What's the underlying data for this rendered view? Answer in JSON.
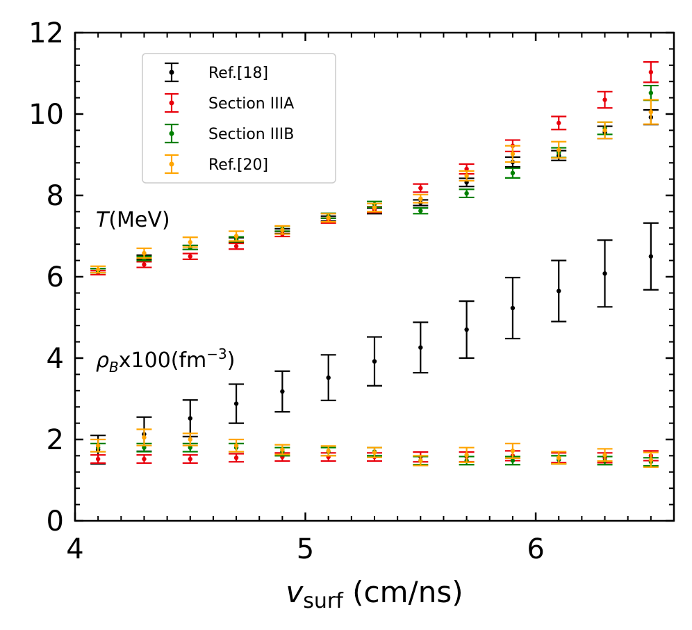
{
  "chart_data": {
    "type": "scatter",
    "xlabel_main": "v",
    "xlabel_sub": "surf",
    "xlabel_unit": " (cm/ns)",
    "ylabel": "",
    "xlim": [
      4.0,
      6.6
    ],
    "ylim": [
      0,
      12
    ],
    "x_ticks": [
      4,
      5,
      6
    ],
    "x_tick_labels": [
      "4",
      "5",
      "6"
    ],
    "y_ticks": [
      0,
      2,
      4,
      6,
      8,
      10,
      12
    ],
    "y_tick_labels": [
      "0",
      "2",
      "4",
      "6",
      "8",
      "10",
      "12"
    ],
    "grid": false,
    "legend_position": "upper-left",
    "annotations": {
      "T_label_italic": "T",
      "T_label_rest": "(MeV)",
      "rho_symbol": "ρ",
      "rho_sub": "B",
      "rho_rest": "x100(fm",
      "rho_sup": "−3",
      "rho_close": ")"
    },
    "x": [
      4.1,
      4.3,
      4.5,
      4.7,
      4.9,
      5.1,
      5.3,
      5.5,
      5.7,
      5.9,
      6.1,
      6.3,
      6.5
    ],
    "series": [
      {
        "name": "Ref.[18]",
        "color": "#000000",
        "offset": 0.0,
        "T": [
          6.15,
          6.48,
          6.72,
          6.9,
          7.12,
          7.43,
          7.62,
          7.82,
          8.32,
          8.82,
          8.98,
          9.55,
          9.92
        ],
        "T_err": [
          0.05,
          0.05,
          0.05,
          0.06,
          0.06,
          0.06,
          0.07,
          0.07,
          0.1,
          0.12,
          0.12,
          0.15,
          0.18
        ],
        "rho": [
          1.75,
          2.13,
          2.52,
          2.88,
          3.18,
          3.52,
          3.92,
          4.26,
          4.7,
          5.23,
          5.65,
          6.08,
          6.5
        ],
        "rho_err": [
          0.35,
          0.42,
          0.45,
          0.48,
          0.5,
          0.56,
          0.6,
          0.62,
          0.7,
          0.75,
          0.75,
          0.82,
          0.82
        ]
      },
      {
        "name": "Section IIIA",
        "color": "#e8000b",
        "offset": 0.0,
        "T": [
          6.1,
          6.3,
          6.5,
          6.75,
          7.05,
          7.38,
          7.65,
          8.18,
          8.65,
          9.22,
          9.78,
          10.35,
          11.03
        ],
        "T_err": [
          0.05,
          0.07,
          0.07,
          0.07,
          0.06,
          0.06,
          0.07,
          0.1,
          0.12,
          0.14,
          0.16,
          0.2,
          0.25
        ],
        "rho": [
          1.52,
          1.52,
          1.52,
          1.55,
          1.57,
          1.57,
          1.57,
          1.57,
          1.57,
          1.6,
          1.55,
          1.55,
          1.6
        ],
        "rho_err": [
          0.1,
          0.1,
          0.1,
          0.1,
          0.1,
          0.1,
          0.1,
          0.12,
          0.12,
          0.12,
          0.12,
          0.12,
          0.12
        ]
      },
      {
        "name": "Section IIIB",
        "color": "#008000",
        "offset": 0.0,
        "T": [
          6.15,
          6.45,
          6.72,
          6.92,
          7.18,
          7.5,
          7.78,
          7.62,
          8.05,
          8.55,
          9.05,
          9.65,
          10.52
        ],
        "T_err": [
          0.05,
          0.05,
          0.05,
          0.06,
          0.06,
          0.06,
          0.07,
          0.07,
          0.1,
          0.12,
          0.12,
          0.15,
          0.18
        ],
        "rho": [
          1.8,
          1.8,
          1.8,
          1.8,
          1.7,
          1.7,
          1.7,
          1.48,
          1.48,
          1.48,
          1.5,
          1.48,
          1.45
        ],
        "rho_err": [
          0.1,
          0.1,
          0.1,
          0.1,
          0.1,
          0.1,
          0.1,
          0.1,
          0.1,
          0.1,
          0.1,
          0.1,
          0.1
        ]
      },
      {
        "name": "Ref.[20]",
        "color": "#ffa500",
        "offset": 0.0,
        "T": [
          6.18,
          6.58,
          6.85,
          7.0,
          7.15,
          7.45,
          7.7,
          7.92,
          8.48,
          9.02,
          9.12,
          9.6,
          10.05
        ],
        "T_err": [
          0.08,
          0.12,
          0.12,
          0.12,
          0.1,
          0.1,
          0.1,
          0.1,
          0.12,
          0.2,
          0.2,
          0.2,
          0.3
        ],
        "rho": [
          1.85,
          2.05,
          2.0,
          1.85,
          1.75,
          1.72,
          1.68,
          1.48,
          1.62,
          1.72,
          1.55,
          1.62,
          1.5
        ],
        "rho_err": [
          0.15,
          0.2,
          0.15,
          0.15,
          0.12,
          0.12,
          0.12,
          0.12,
          0.18,
          0.18,
          0.15,
          0.15,
          0.18
        ]
      }
    ]
  }
}
